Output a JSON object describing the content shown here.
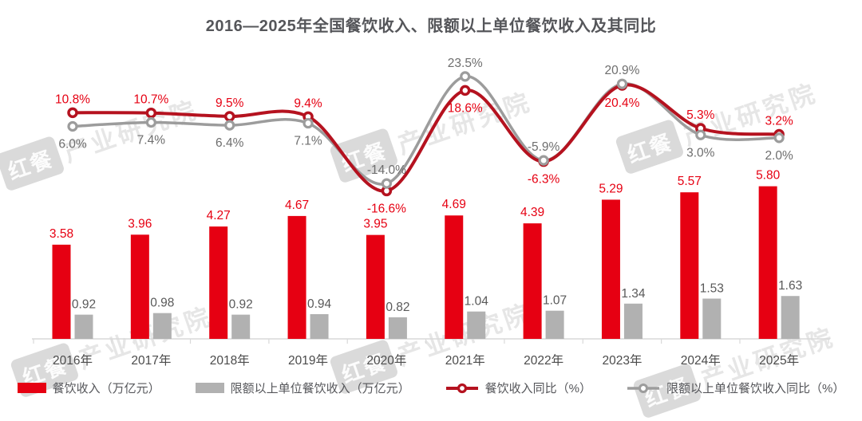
{
  "title": "2016—2025年全国餐饮收入、限额以上单位餐饮收入及其同比",
  "watermark": {
    "badge": "红餐",
    "text": "产业研究院"
  },
  "chart_data": {
    "type": "bar+line combo",
    "categories": [
      "2016年",
      "2017年",
      "2018年",
      "2019年",
      "2020年",
      "2021年",
      "2022年",
      "2023年",
      "2024年",
      "2025年"
    ],
    "series": [
      {
        "name": "餐饮收入（万亿元）",
        "type": "bar",
        "color": "#e60012",
        "values": [
          3.58,
          3.96,
          4.27,
          4.67,
          3.95,
          4.69,
          4.39,
          5.29,
          5.57,
          5.8
        ]
      },
      {
        "name": "限额以上单位餐饮收入（万亿元）",
        "type": "bar",
        "color": "#b1b1b1",
        "values": [
          0.92,
          0.98,
          0.92,
          0.94,
          0.82,
          1.04,
          1.07,
          1.34,
          1.53,
          1.63
        ]
      },
      {
        "name": "餐饮收入同比（%）",
        "type": "line",
        "color": "#b5121f",
        "values": [
          10.8,
          10.7,
          9.5,
          9.4,
          -16.6,
          18.6,
          -6.3,
          20.4,
          5.3,
          3.2
        ]
      },
      {
        "name": "限额以上单位餐饮收入同比（%）",
        "type": "line",
        "color": "#9c9c9c",
        "values": [
          6.0,
          7.4,
          6.4,
          7.1,
          -14.0,
          23.5,
          -5.9,
          20.9,
          3.0,
          2.0
        ]
      }
    ],
    "value_label_colors": {
      "bar_red": "#e60012",
      "bar_gray": "#595959",
      "line_red": "#e60012",
      "line_gray": "#6e6e6e"
    },
    "axis": {
      "line_color": "#d9d9d9",
      "x_label_color": "#4b4b4b",
      "grid": false
    },
    "legend_position": "bottom",
    "title": "2016—2025年全国餐饮收入、限额以上单位餐饮收入及其同比"
  },
  "legend": {
    "items": [
      "餐饮收入（万亿元）",
      "限额以上单位餐饮收入（万亿元）",
      "餐饮收入同比（%）",
      "限额以上单位餐饮收入同比（%）"
    ]
  }
}
